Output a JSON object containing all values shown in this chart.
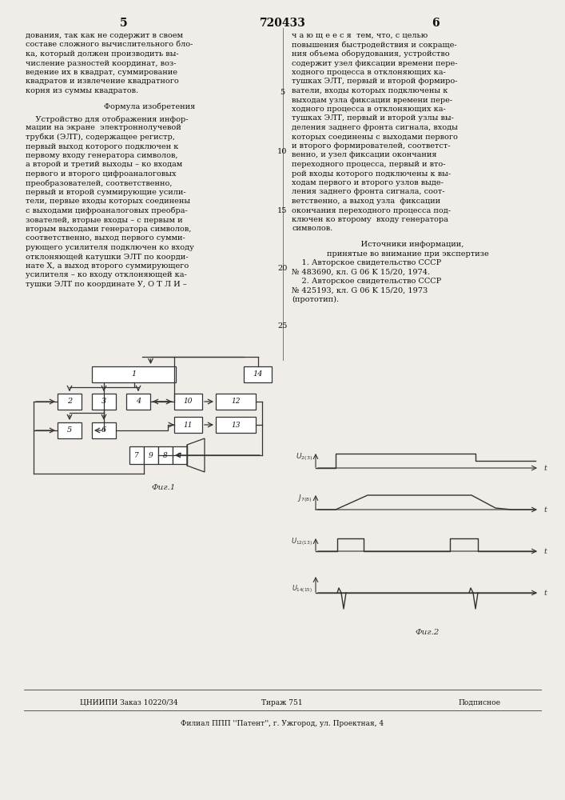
{
  "bg_color": "#f0ede8",
  "title_number": "720433",
  "page_left": "5",
  "page_right": "6",
  "left_text_lines": [
    "дования, так как не содержит в своем",
    "составе сложного вычислительного бло-",
    "ка, который должен производить вы-",
    "числение разностей координат, воз-",
    "ведение их в квадрат, суммирование",
    "квадратов и извлечение квадратного",
    "корня из суммы квадратов."
  ],
  "formula_title": "Формула изобретения",
  "formula_lines": [
    "    Устройство для отображения инфор-",
    "мации на экране  электроннолучевой",
    "трубки (ЭЛТ), содержащее регистр,",
    "первый выход которого подключен к",
    "первому входу генератора символов,",
    "а второй и третий выходы – ко входам",
    "первого и второго цифроаналоговых",
    "преобразователей, соответственно,",
    "первый и второй суммирующие усили-",
    "тели, первые входы которых соединены",
    "с выходами цифроаналоговых преобра-",
    "зователей, вторые входы – с первым и",
    "вторым выходами генератора символов,",
    "соответственно, выход первого сумми-",
    "рующего усилителя подключен ко входу",
    "отклоняющей катушки ЭЛТ по коорди-",
    "нате Х, а выход второго суммирующего",
    "усилителя – ко входу отклоняющей ка-",
    "тушки ЭЛТ по координате У, О Т Л И –"
  ],
  "right_text_lines": [
    "ч а ю щ е е с я  тем, что, с целью",
    "повышения быстродействия и сокраще-",
    "ния объема оборудования, устройство",
    "содержит узел фиксации времени пере-",
    "ходного процесса в отклоняющих ка-",
    "тушках ЭЛТ, первый и второй формиро-",
    "ватели, входы которых подключены к",
    "выходам узла фиксации времени пере-",
    "ходного процесса в отклоняющих ка-",
    "тушках ЭЛТ, первый и второй узлы вы-",
    "деления заднего фронта сигнала, входы",
    "которых соединены с выходами первого",
    "и второго формирователей, соответст-",
    "венно, и узел фиксации окончания",
    "переходного процесса, первый и вто-",
    "рой входы которого подключены к вы-",
    "ходам первого и второго узлов выде-",
    "ления заднего фронта сигнала, соот-",
    "ветственно, а выход узла  фиксации",
    "окончания переходного процесса под-",
    "ключен ко второму  входу генератора",
    "символов."
  ],
  "sources_title": "    Источники информации,",
  "sources_sub": "принятые во внимание при экспертизе",
  "source1a": "    1. Авторское свидетельство СССР",
  "source1b": "№ 483690, кл. G 06 K 15/20, 1974.",
  "source2a": "    2. Авторское свидетельство СССР",
  "source2b": "№ 425193, кл. G 06 K 15/20, 1973",
  "source2c": "(прототип).",
  "line_numbers": [
    "5",
    "10",
    "15",
    "20",
    "25"
  ],
  "line_number_y_offsets": [
    115,
    190,
    263,
    335,
    408
  ],
  "fig1_label": "Фиг.1",
  "fig2_label": "Фиг.2",
  "bottom1": "ЦНИИПИ Заказ 10220/34",
  "bottom2": "Тираж 751",
  "bottom3": "Подписное",
  "bottom4": "Филиал ППП ''Патент'', г. Ужгород, ул. Проектная, 4"
}
